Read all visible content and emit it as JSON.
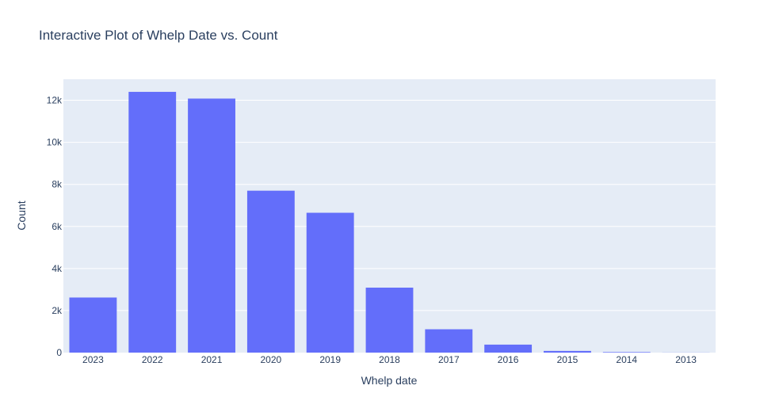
{
  "chart_data": {
    "type": "bar",
    "title": "Interactive Plot of Whelp Date vs. Count",
    "xlabel": "Whelp date",
    "ylabel": "Count",
    "categories": [
      "2023",
      "2022",
      "2021",
      "2020",
      "2019",
      "2018",
      "2017",
      "2016",
      "2015",
      "2014",
      "2013"
    ],
    "series": [
      {
        "values": [
          2620,
          12400,
          12080,
          7700,
          6650,
          3090,
          1110,
          380,
          80,
          25,
          5
        ],
        "color": "#636efa"
      }
    ],
    "ylim": [
      0,
      13000
    ],
    "yticks": [
      0,
      2000,
      4000,
      6000,
      8000,
      10000,
      12000
    ],
    "ytick_labels": [
      "0",
      "2k",
      "4k",
      "6k",
      "8k",
      "10k",
      "12k"
    ],
    "grid": true,
    "legend": "none",
    "plot_background": "#e5ecf6"
  }
}
